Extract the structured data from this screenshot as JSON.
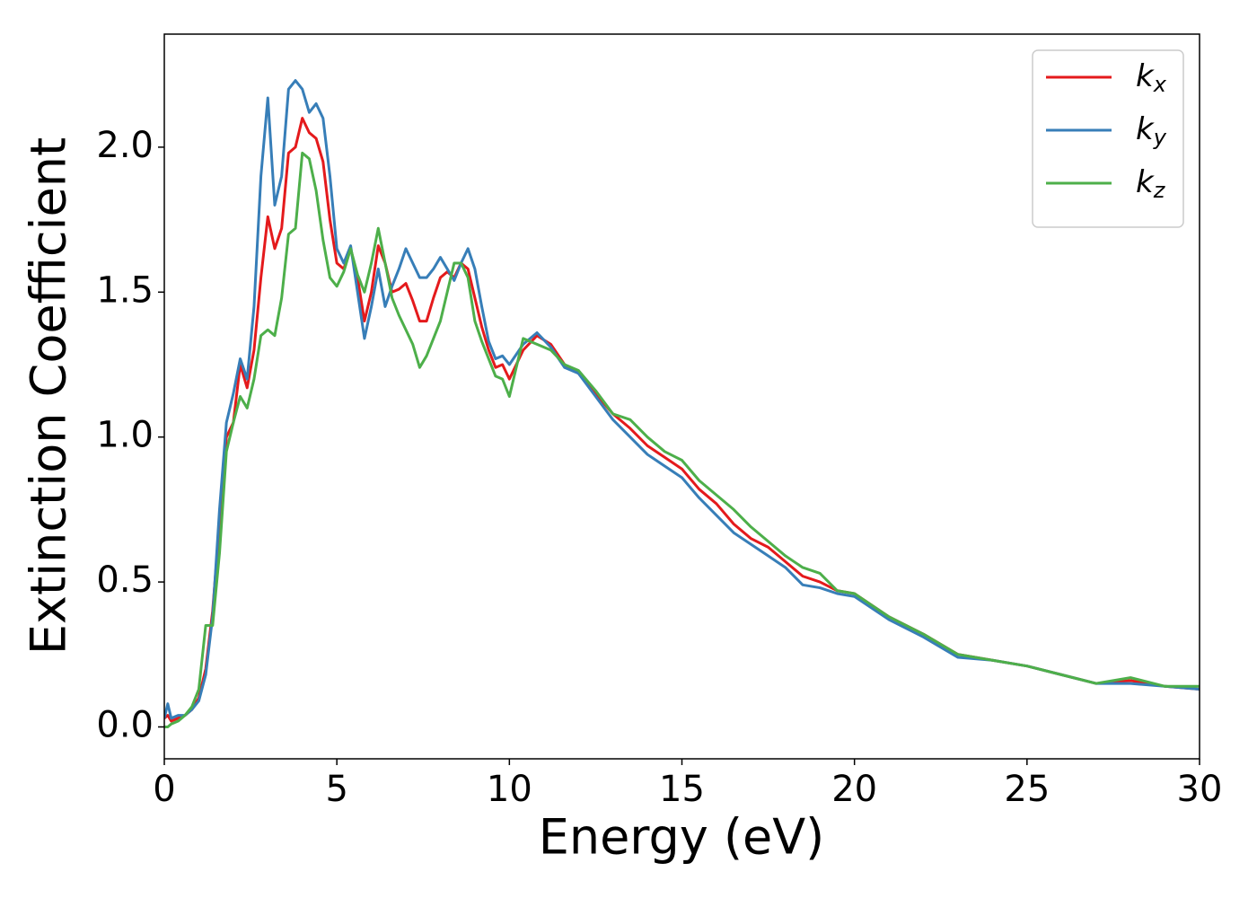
{
  "chart_data": {
    "type": "line",
    "xlabel": "Energy (eV)",
    "ylabel": "Extinction Coefficient",
    "xlim": [
      0,
      30
    ],
    "ylim": [
      -0.11,
      2.39
    ],
    "xticks": [
      0,
      5,
      10,
      15,
      20,
      25,
      30
    ],
    "yticks": [
      {
        "value": 0,
        "label": "0.0"
      },
      0.5,
      {
        "value": 1,
        "label": "1.0"
      },
      1.5,
      {
        "value": 2,
        "label": "2.0"
      }
    ],
    "legend": "upper right",
    "grid": false,
    "x": [
      0,
      0.1,
      0.2,
      0.4,
      0.6,
      0.8,
      1.0,
      1.2,
      1.4,
      1.6,
      1.8,
      2.0,
      2.2,
      2.4,
      2.6,
      2.8,
      3.0,
      3.2,
      3.4,
      3.6,
      3.8,
      4.0,
      4.2,
      4.4,
      4.6,
      4.8,
      5.0,
      5.2,
      5.4,
      5.6,
      5.8,
      6.0,
      6.2,
      6.4,
      6.6,
      6.8,
      7.0,
      7.2,
      7.4,
      7.6,
      7.8,
      8.0,
      8.2,
      8.4,
      8.6,
      8.8,
      9.0,
      9.2,
      9.4,
      9.6,
      9.8,
      10.0,
      10.4,
      10.8,
      11.2,
      11.6,
      12.0,
      12.5,
      13,
      13.5,
      14,
      14.5,
      15,
      15.5,
      16,
      16.5,
      17,
      17.5,
      18,
      18.5,
      19,
      19.5,
      20,
      21,
      22,
      23,
      24,
      25,
      26,
      27,
      28,
      29,
      30
    ],
    "series": [
      {
        "name": "kx",
        "color": "#e41a1c",
        "values": [
          0.03,
          0.04,
          0.02,
          0.03,
          0.04,
          0.06,
          0.1,
          0.2,
          0.4,
          0.7,
          1.0,
          1.05,
          1.25,
          1.17,
          1.3,
          1.55,
          1.76,
          1.65,
          1.72,
          1.98,
          2.0,
          2.1,
          2.05,
          2.03,
          1.95,
          1.75,
          1.6,
          1.58,
          1.65,
          1.55,
          1.4,
          1.5,
          1.66,
          1.6,
          1.5,
          1.51,
          1.53,
          1.47,
          1.4,
          1.4,
          1.48,
          1.55,
          1.57,
          1.55,
          1.6,
          1.58,
          1.48,
          1.38,
          1.3,
          1.24,
          1.25,
          1.2,
          1.3,
          1.35,
          1.32,
          1.25,
          1.22,
          1.15,
          1.08,
          1.03,
          0.97,
          0.93,
          0.89,
          0.82,
          0.77,
          0.7,
          0.65,
          0.62,
          0.57,
          0.52,
          0.5,
          0.47,
          0.46,
          0.38,
          0.32,
          0.25,
          0.23,
          0.21,
          0.18,
          0.15,
          0.16,
          0.14,
          0.13
        ]
      },
      {
        "name": "ky",
        "color": "#377eb8",
        "values": [
          0.03,
          0.08,
          0.03,
          0.04,
          0.04,
          0.06,
          0.09,
          0.18,
          0.38,
          0.75,
          1.05,
          1.15,
          1.27,
          1.2,
          1.45,
          1.9,
          2.17,
          1.8,
          1.9,
          2.2,
          2.23,
          2.2,
          2.12,
          2.15,
          2.1,
          1.9,
          1.65,
          1.6,
          1.66,
          1.5,
          1.34,
          1.45,
          1.58,
          1.45,
          1.52,
          1.58,
          1.65,
          1.6,
          1.55,
          1.55,
          1.58,
          1.62,
          1.58,
          1.54,
          1.6,
          1.65,
          1.58,
          1.45,
          1.33,
          1.27,
          1.28,
          1.25,
          1.32,
          1.36,
          1.31,
          1.24,
          1.22,
          1.14,
          1.06,
          1.0,
          0.94,
          0.9,
          0.86,
          0.79,
          0.73,
          0.67,
          0.63,
          0.59,
          0.55,
          0.49,
          0.48,
          0.46,
          0.45,
          0.37,
          0.31,
          0.24,
          0.23,
          0.21,
          0.18,
          0.15,
          0.15,
          0.14,
          0.13
        ]
      },
      {
        "name": "kz",
        "color": "#4daf4a",
        "values": [
          0.0,
          0.0,
          0.01,
          0.02,
          0.04,
          0.07,
          0.13,
          0.35,
          0.35,
          0.6,
          0.95,
          1.05,
          1.14,
          1.1,
          1.2,
          1.35,
          1.37,
          1.35,
          1.48,
          1.7,
          1.72,
          1.98,
          1.96,
          1.85,
          1.68,
          1.55,
          1.52,
          1.57,
          1.65,
          1.56,
          1.5,
          1.6,
          1.72,
          1.6,
          1.48,
          1.42,
          1.37,
          1.32,
          1.24,
          1.28,
          1.34,
          1.4,
          1.5,
          1.6,
          1.6,
          1.55,
          1.4,
          1.33,
          1.27,
          1.21,
          1.2,
          1.14,
          1.34,
          1.32,
          1.3,
          1.25,
          1.23,
          1.16,
          1.08,
          1.06,
          1.0,
          0.95,
          0.92,
          0.85,
          0.8,
          0.75,
          0.69,
          0.64,
          0.59,
          0.55,
          0.53,
          0.47,
          0.46,
          0.38,
          0.32,
          0.25,
          0.23,
          0.21,
          0.18,
          0.15,
          0.17,
          0.14,
          0.14
        ]
      }
    ]
  }
}
